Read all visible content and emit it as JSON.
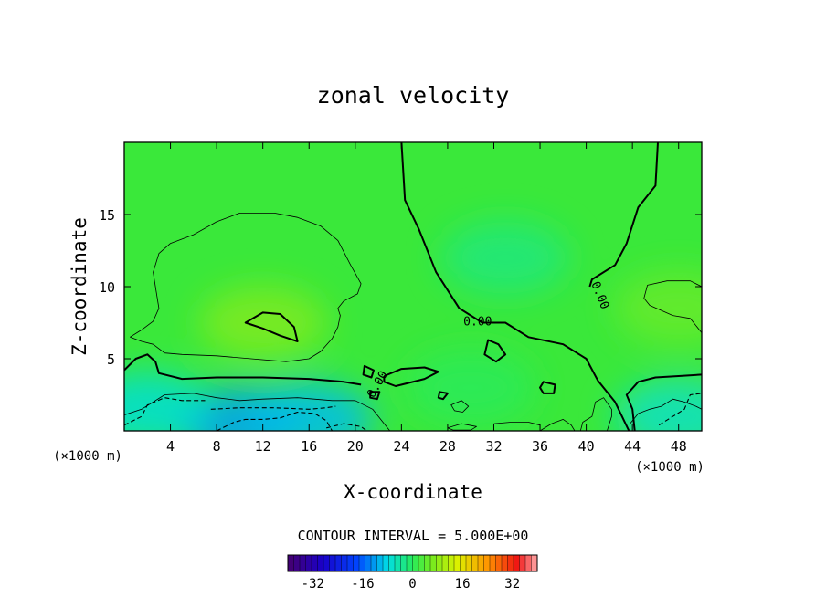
{
  "chart_data": {
    "type": "heatmap",
    "title": "zonal velocity",
    "xlabel": "X-coordinate",
    "ylabel": "Z-coordinate",
    "x_unit": "(×1000 m)",
    "y_unit": "(×1000 m)",
    "xlim": [
      0,
      50
    ],
    "ylim": [
      0,
      20
    ],
    "x_ticks": [
      "4",
      "8",
      "12",
      "16",
      "20",
      "24",
      "28",
      "32",
      "36",
      "40",
      "44",
      "48"
    ],
    "x_tick_values": [
      4,
      8,
      12,
      16,
      20,
      24,
      28,
      32,
      36,
      40,
      44,
      48
    ],
    "y_ticks": [
      "5",
      "10",
      "15"
    ],
    "y_tick_values": [
      5,
      10,
      15
    ],
    "contour_interval_label": "CONTOUR INTERVAL = 5.000E+00",
    "contour_interval": 5.0,
    "contour_labels": [
      "0.00",
      "0.00",
      "0.00"
    ],
    "colorbar": {
      "min": -40,
      "max": 40,
      "ticks": [
        "-32",
        "-16",
        "0",
        "16",
        "32"
      ],
      "tick_values": [
        -32,
        -16,
        0,
        16,
        32
      ]
    },
    "field_features": [
      {
        "x": 12,
        "z": 7.5,
        "value": 7
      },
      {
        "x": 48,
        "z": 8.5,
        "value": 5
      },
      {
        "x": 10,
        "z": 0.5,
        "value": -12
      },
      {
        "x": 16,
        "z": 0.8,
        "value": -10
      },
      {
        "x": 2,
        "z": 1.5,
        "value": -7
      },
      {
        "x": 48,
        "z": 1.0,
        "value": -6
      },
      {
        "x": 33,
        "z": 12,
        "value": -2
      },
      {
        "x": 30,
        "z": 3,
        "value": 0
      }
    ],
    "contour_lines": [
      {
        "level": 0,
        "style": "thick",
        "points": [
          [
            24,
            20
          ],
          [
            24.3,
            16
          ],
          [
            25.5,
            14
          ],
          [
            27,
            11
          ],
          [
            29,
            8.5
          ],
          [
            31,
            7.5
          ],
          [
            33,
            7.5
          ],
          [
            35,
            6.5
          ],
          [
            38,
            6
          ],
          [
            40,
            5
          ],
          [
            41,
            3.5
          ],
          [
            42.5,
            2
          ],
          [
            43.7,
            0
          ]
        ]
      },
      {
        "level": 0,
        "style": "thick",
        "points": [
          [
            46.2,
            20
          ],
          [
            46,
            17
          ],
          [
            44.5,
            15.5
          ],
          [
            43.5,
            13
          ],
          [
            42.5,
            11.5
          ],
          [
            40.5,
            10.5
          ],
          [
            40.3,
            10
          ]
        ]
      },
      {
        "level": 0,
        "style": "thick",
        "points": [
          [
            0,
            4.2
          ],
          [
            1,
            5
          ],
          [
            2,
            5.3
          ],
          [
            2.7,
            4.8
          ],
          [
            3,
            4
          ],
          [
            5,
            3.6
          ],
          [
            8,
            3.7
          ],
          [
            12,
            3.7
          ],
          [
            16,
            3.6
          ],
          [
            19,
            3.4
          ],
          [
            20.5,
            3.2
          ]
        ]
      },
      {
        "level": 0,
        "style": "thick",
        "points": [
          [
            50,
            3.9
          ],
          [
            48,
            3.8
          ],
          [
            46,
            3.7
          ],
          [
            44.5,
            3.4
          ],
          [
            43.5,
            2.5
          ],
          [
            44,
            1.5
          ],
          [
            44.2,
            0
          ]
        ]
      },
      {
        "level": 0,
        "style": "thick",
        "closed": true,
        "points": [
          [
            10.5,
            7.5
          ],
          [
            12,
            8.2
          ],
          [
            13.5,
            8.1
          ],
          [
            14.7,
            7.2
          ],
          [
            15,
            6.2
          ],
          [
            13.5,
            6.6
          ],
          [
            12,
            7.1
          ]
        ]
      },
      {
        "level": 0,
        "style": "thick",
        "closed": true,
        "points": [
          [
            31.5,
            6.3
          ],
          [
            32.4,
            6
          ],
          [
            33,
            5.3
          ],
          [
            32.2,
            4.8
          ],
          [
            31.2,
            5.3
          ]
        ]
      },
      {
        "level": 0,
        "style": "thick",
        "closed": true,
        "points": [
          [
            36.3,
            3.4
          ],
          [
            37.3,
            3.2
          ],
          [
            37.2,
            2.6
          ],
          [
            36.3,
            2.6
          ],
          [
            36,
            3
          ]
        ]
      },
      {
        "level": 0,
        "style": "thick",
        "closed": true,
        "points": [
          [
            20.8,
            4.5
          ],
          [
            21.6,
            4.2
          ],
          [
            21.4,
            3.7
          ],
          [
            20.7,
            3.9
          ]
        ]
      },
      {
        "level": 0,
        "style": "thick",
        "points": [
          [
            22.5,
            3.8
          ],
          [
            24,
            4.3
          ],
          [
            26,
            4.4
          ],
          [
            27.2,
            4.1
          ],
          [
            26,
            3.6
          ],
          [
            24.5,
            3.3
          ],
          [
            23.5,
            3.1
          ],
          [
            22.5,
            3.4
          ],
          [
            22.5,
            3.8
          ]
        ]
      },
      {
        "level": 0,
        "style": "thick",
        "closed": true,
        "points": [
          [
            21.3,
            2.7
          ],
          [
            22.1,
            2.7
          ],
          [
            21.9,
            2.2
          ],
          [
            21.3,
            2.3
          ]
        ]
      },
      {
        "level": 0,
        "style": "thick",
        "closed": true,
        "points": [
          [
            27.3,
            2.7
          ],
          [
            28,
            2.6
          ],
          [
            27.6,
            2.2
          ],
          [
            27.2,
            2.3
          ]
        ]
      },
      {
        "level": 5,
        "style": "thin",
        "points": [
          [
            0.5,
            6.5
          ],
          [
            1.5,
            7
          ],
          [
            2.5,
            7.6
          ],
          [
            3,
            8.5
          ],
          [
            2.7,
            10
          ],
          [
            2.5,
            11
          ],
          [
            3,
            12.3
          ],
          [
            4,
            13
          ],
          [
            6,
            13.6
          ],
          [
            8,
            14.5
          ],
          [
            10,
            15.1
          ],
          [
            13,
            15.1
          ],
          [
            15,
            14.8
          ],
          [
            17,
            14.2
          ],
          [
            18.5,
            13.2
          ],
          [
            19.6,
            11.5
          ],
          [
            20.5,
            10.2
          ],
          [
            20.2,
            9.5
          ],
          [
            19,
            9
          ],
          [
            18.5,
            8.5
          ],
          [
            18.7,
            8
          ],
          [
            18.5,
            7.2
          ],
          [
            18,
            6.4
          ],
          [
            17,
            5.5
          ],
          [
            16,
            5
          ],
          [
            14,
            4.8
          ],
          [
            11,
            5
          ],
          [
            8,
            5.2
          ],
          [
            5,
            5.3
          ],
          [
            3.5,
            5.4
          ],
          [
            2.5,
            6
          ],
          [
            1.5,
            6.2
          ],
          [
            0.5,
            6.5
          ]
        ]
      },
      {
        "level": 5,
        "style": "thin",
        "closed": true,
        "points": [
          [
            50,
            6.8
          ],
          [
            49,
            7.8
          ],
          [
            47.5,
            8
          ],
          [
            45.5,
            8.7
          ],
          [
            45,
            9.2
          ],
          [
            45.3,
            10.1
          ],
          [
            47,
            10.4
          ],
          [
            49,
            10.4
          ],
          [
            50,
            10
          ]
        ]
      },
      {
        "level": 5,
        "style": "thin",
        "points": [
          [
            39.5,
            0
          ],
          [
            39.7,
            0.6
          ],
          [
            40.5,
            1
          ],
          [
            40.8,
            2
          ],
          [
            41.5,
            2.3
          ],
          [
            42.2,
            1.5
          ],
          [
            42.2,
            1
          ],
          [
            41.8,
            0
          ]
        ]
      },
      {
        "level": -5,
        "style": "thin",
        "points": [
          [
            0,
            1.1
          ],
          [
            1.5,
            1.5
          ],
          [
            3.5,
            2.5
          ],
          [
            6,
            2.6
          ],
          [
            8,
            2.3
          ],
          [
            10,
            2.1
          ],
          [
            12,
            2.2
          ],
          [
            15,
            2.3
          ],
          [
            18,
            2.1
          ],
          [
            20,
            2.1
          ],
          [
            21.5,
            1.5
          ],
          [
            22.5,
            0.5
          ],
          [
            23,
            0
          ]
        ]
      },
      {
        "level": -5,
        "style": "thin",
        "points": [
          [
            36,
            0
          ],
          [
            37,
            0.5
          ],
          [
            38,
            0.8
          ],
          [
            38.7,
            0.4
          ],
          [
            39,
            0
          ]
        ]
      },
      {
        "level": -5,
        "style": "thin",
        "closed": true,
        "points": [
          [
            28,
            0.2
          ],
          [
            29.2,
            0.5
          ],
          [
            30.5,
            0.3
          ],
          [
            30,
            0.05
          ],
          [
            28.5,
            0.05
          ]
        ]
      },
      {
        "level": -5,
        "style": "thin",
        "closed": true,
        "points": [
          [
            28.3,
            1.8
          ],
          [
            29.2,
            2.1
          ],
          [
            29.8,
            1.7
          ],
          [
            29.3,
            1.3
          ],
          [
            28.6,
            1.4
          ]
        ]
      },
      {
        "level": -5,
        "style": "thin",
        "points": [
          [
            43.8,
            0.5
          ],
          [
            44.5,
            1.2
          ],
          [
            45.5,
            1.5
          ],
          [
            46.5,
            1.7
          ],
          [
            47.5,
            2.2
          ],
          [
            48.5,
            2
          ],
          [
            49.5,
            1.7
          ],
          [
            50,
            1.5
          ]
        ]
      },
      {
        "level": -5,
        "style": "thin",
        "points": [
          [
            32,
            0.5
          ],
          [
            33.5,
            0.6
          ],
          [
            35,
            0.6
          ],
          [
            36,
            0.4
          ]
        ]
      },
      {
        "level": -5,
        "style": "dashed",
        "points": [
          [
            0,
            0.4
          ],
          [
            1.5,
            1
          ],
          [
            2,
            1.8
          ],
          [
            3.5,
            2.3
          ],
          [
            5,
            2.1
          ],
          [
            7,
            2.1
          ]
        ]
      },
      {
        "level": -5,
        "style": "dashed",
        "points": [
          [
            7.5,
            1.5
          ],
          [
            10,
            1.6
          ],
          [
            13,
            1.6
          ],
          [
            16,
            1.5
          ],
          [
            17.5,
            1.6
          ],
          [
            18.3,
            1.7
          ]
        ]
      },
      {
        "level": -10,
        "style": "dashed",
        "points": [
          [
            8,
            0
          ],
          [
            9.5,
            0.6
          ],
          [
            10.5,
            0.8
          ],
          [
            12,
            0.8
          ],
          [
            13.5,
            0.9
          ],
          [
            15,
            1.3
          ],
          [
            16.5,
            1.2
          ],
          [
            17.5,
            0.7
          ],
          [
            18,
            0
          ]
        ]
      },
      {
        "level": -5,
        "style": "dashed",
        "points": [
          [
            46.3,
            0.4
          ],
          [
            47.5,
            1
          ],
          [
            48.5,
            1.5
          ],
          [
            49,
            2.5
          ],
          [
            50,
            2.6
          ]
        ]
      },
      {
        "level": -5,
        "style": "dashed",
        "points": [
          [
            17.5,
            0.2
          ],
          [
            19,
            0.5
          ],
          [
            20.5,
            0.3
          ],
          [
            21,
            0
          ]
        ]
      }
    ]
  }
}
